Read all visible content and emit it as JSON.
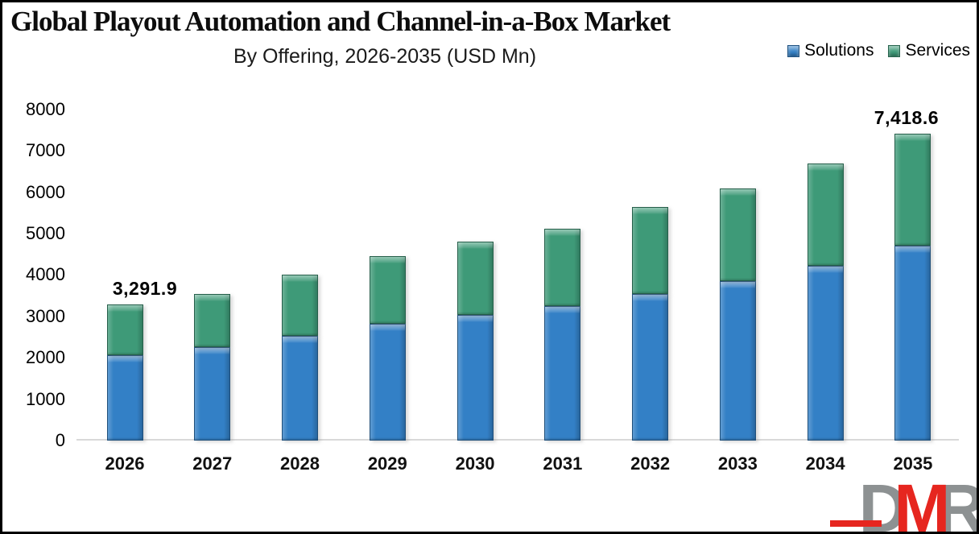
{
  "header": {
    "title": "Global Playout Automation and Channel-in-a-Box Market",
    "subtitle": "By Offering, 2026-2035 (USD Mn)"
  },
  "chart_data": {
    "type": "bar",
    "stacked": true,
    "title": "Global Playout Automation and Channel-in-a-Box Market",
    "subtitle": "By Offering, 2026-2035 (USD Mn)",
    "unit": "USD Mn",
    "categories": [
      "2026",
      "2027",
      "2028",
      "2029",
      "2030",
      "2031",
      "2032",
      "2033",
      "2034",
      "2035"
    ],
    "series": [
      {
        "name": "Solutions",
        "color": "#3380C6",
        "values": [
          2070,
          2250,
          2520,
          2820,
          3030,
          3240,
          3550,
          3850,
          4220,
          4700
        ]
      },
      {
        "name": "Services",
        "color": "#3E9A78",
        "values": [
          1221.9,
          1300,
          1480,
          1635,
          1770,
          1880,
          2085,
          2240,
          2470,
          2718.6
        ]
      }
    ],
    "totals": [
      3291.9,
      3550,
      4000,
      4455,
      4800,
      5120,
      5635,
      6090,
      6690,
      7418.6
    ],
    "annotations": [
      {
        "category": "2026",
        "text": "3,291.9"
      },
      {
        "category": "2035",
        "text": "7,418.6"
      }
    ],
    "y_axis": {
      "min": 0,
      "max": 8000,
      "step": 1000,
      "ticks": [
        "0",
        "1000",
        "2000",
        "3000",
        "4000",
        "5000",
        "6000",
        "7000",
        "8000"
      ]
    },
    "x_axis": {
      "label": ""
    },
    "legend_position": "top-right",
    "grid": false,
    "axis_line_color": "#d9d9d9"
  },
  "logo": {
    "letters": [
      "D",
      "M",
      "R"
    ],
    "gray": "#8D9192",
    "red": "#E6261F"
  }
}
